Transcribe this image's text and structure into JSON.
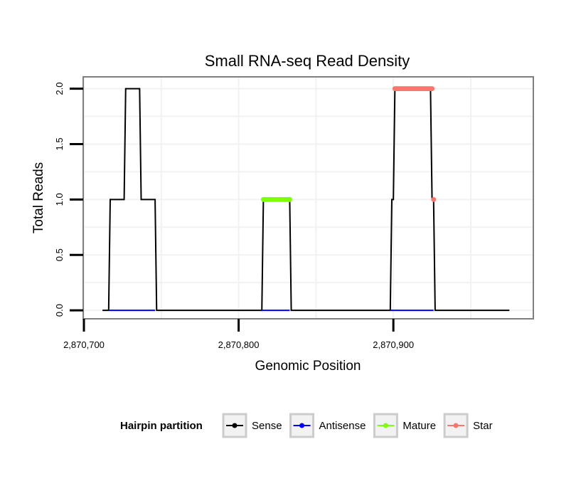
{
  "chart_data": {
    "type": "line",
    "title": "Small RNA-seq Read Density",
    "xlabel": "Genomic Position",
    "ylabel": "Total Reads",
    "xlim": [
      2870700,
      2870990
    ],
    "ylim": [
      -0.07,
      2.1
    ],
    "x_ticks": [
      2870700,
      2870800,
      2870900
    ],
    "x_tick_labels": [
      "2,870,700",
      "2,870,800",
      "2,870,900"
    ],
    "y_ticks": [
      0,
      0.5,
      1,
      1.5,
      2
    ],
    "y_tick_labels": [
      "0.0",
      "0.5",
      "1.0",
      "1.5",
      "2.0"
    ],
    "grid": true,
    "legend_title": "Hairpin partition",
    "legend_position": "bottom",
    "series": [
      {
        "name": "Sense",
        "color": "#000000",
        "x": [
          2870712,
          2870716,
          2870717,
          2870726,
          2870727,
          2870736,
          2870737,
          2870746,
          2870747,
          2870815,
          2870816,
          2870833,
          2870834,
          2870898,
          2870899,
          2870900,
          2870901,
          2870924,
          2870925,
          2870926,
          2870927,
          2870975
        ],
        "y": [
          0,
          0,
          1,
          1,
          2,
          2,
          1,
          1,
          0,
          0,
          1,
          1,
          0,
          0,
          1,
          1,
          2,
          2,
          1,
          1,
          0,
          0
        ]
      },
      {
        "name": "Antisense",
        "color": "#0000ff",
        "x": [
          2870716,
          2870746,
          2870815,
          2870833,
          2870898,
          2870926
        ],
        "y": [
          0,
          0,
          0,
          0,
          0,
          0
        ]
      },
      {
        "name": "Mature",
        "color": "#7fff00",
        "x": [
          2870816,
          2870817,
          2870818,
          2870819,
          2870820,
          2870821,
          2870822,
          2870823,
          2870824,
          2870825,
          2870826,
          2870827,
          2870828,
          2870829,
          2870830,
          2870831,
          2870832,
          2870833
        ],
        "y": [
          1,
          1,
          1,
          1,
          1,
          1,
          1,
          1,
          1,
          1,
          1,
          1,
          1,
          1,
          1,
          1,
          1,
          1
        ]
      },
      {
        "name": "Star",
        "color": "#f8766d",
        "x": [
          2870901,
          2870902,
          2870903,
          2870904,
          2870905,
          2870906,
          2870907,
          2870908,
          2870909,
          2870910,
          2870911,
          2870912,
          2870913,
          2870914,
          2870915,
          2870916,
          2870917,
          2870918,
          2870919,
          2870920,
          2870921,
          2870922,
          2870923,
          2870924,
          2870925,
          2870926
        ],
        "y": [
          2,
          2,
          2,
          2,
          2,
          2,
          2,
          2,
          2,
          2,
          2,
          2,
          2,
          2,
          2,
          2,
          2,
          2,
          2,
          2,
          2,
          2,
          2,
          2,
          2,
          1
        ]
      }
    ]
  }
}
